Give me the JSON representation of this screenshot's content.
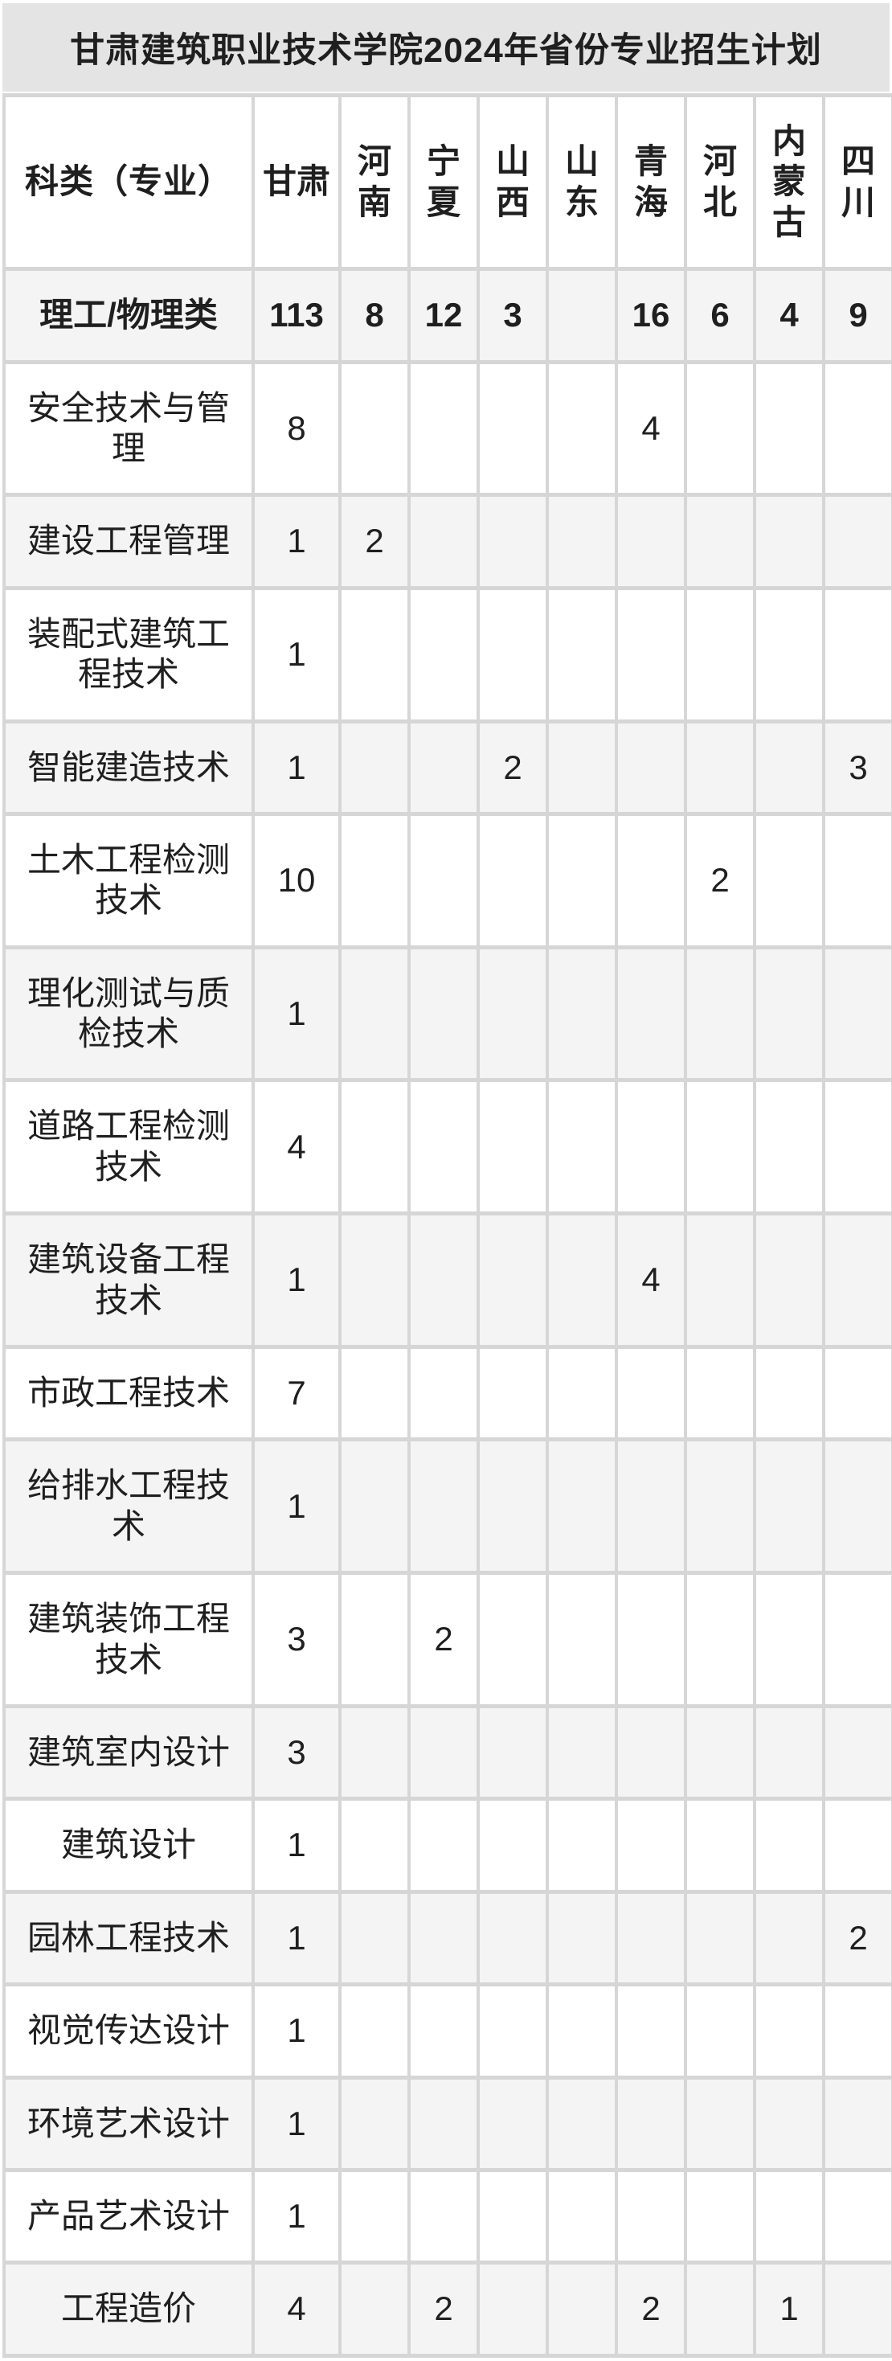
{
  "title": "甘肃建筑职业技术学院2024年省份专业招生计划",
  "colors": {
    "title_background": "#e4e4e4",
    "stripe_row_background": "#f4f4f4",
    "grid_line": "#d6d6d6",
    "text": "#1f1f1f"
  },
  "table": {
    "corner_header": "科类（专业）",
    "provinces": [
      "甘肃",
      "河南",
      "宁夏",
      "山西",
      "山东",
      "青海",
      "河北",
      "内蒙古",
      "四川"
    ],
    "rows": [
      {
        "label": "理工/物理类",
        "bold": true,
        "values": [
          "113",
          "8",
          "12",
          "3",
          "",
          "16",
          "6",
          "4",
          "9"
        ]
      },
      {
        "label": "安全技术与管理",
        "bold": false,
        "values": [
          "8",
          "",
          "",
          "",
          "",
          "4",
          "",
          "",
          ""
        ]
      },
      {
        "label": "建设工程管理",
        "bold": false,
        "values": [
          "1",
          "2",
          "",
          "",
          "",
          "",
          "",
          "",
          ""
        ]
      },
      {
        "label": "装配式建筑工程技术",
        "bold": false,
        "values": [
          "1",
          "",
          "",
          "",
          "",
          "",
          "",
          "",
          ""
        ]
      },
      {
        "label": "智能建造技术",
        "bold": false,
        "values": [
          "1",
          "",
          "",
          "2",
          "",
          "",
          "",
          "",
          "3"
        ]
      },
      {
        "label": "土木工程检测技术",
        "bold": false,
        "values": [
          "10",
          "",
          "",
          "",
          "",
          "",
          "2",
          "",
          ""
        ]
      },
      {
        "label": "理化测试与质检技术",
        "bold": false,
        "values": [
          "1",
          "",
          "",
          "",
          "",
          "",
          "",
          "",
          ""
        ]
      },
      {
        "label": "道路工程检测技术",
        "bold": false,
        "values": [
          "4",
          "",
          "",
          "",
          "",
          "",
          "",
          "",
          ""
        ]
      },
      {
        "label": "建筑设备工程技术",
        "bold": false,
        "values": [
          "1",
          "",
          "",
          "",
          "",
          "4",
          "",
          "",
          ""
        ]
      },
      {
        "label": "市政工程技术",
        "bold": false,
        "values": [
          "7",
          "",
          "",
          "",
          "",
          "",
          "",
          "",
          ""
        ]
      },
      {
        "label": "给排水工程技术",
        "bold": false,
        "values": [
          "1",
          "",
          "",
          "",
          "",
          "",
          "",
          "",
          ""
        ]
      },
      {
        "label": "建筑装饰工程技术",
        "bold": false,
        "values": [
          "3",
          "",
          "2",
          "",
          "",
          "",
          "",
          "",
          ""
        ]
      },
      {
        "label": "建筑室内设计",
        "bold": false,
        "values": [
          "3",
          "",
          "",
          "",
          "",
          "",
          "",
          "",
          ""
        ]
      },
      {
        "label": "建筑设计",
        "bold": false,
        "values": [
          "1",
          "",
          "",
          "",
          "",
          "",
          "",
          "",
          ""
        ]
      },
      {
        "label": "园林工程技术",
        "bold": false,
        "values": [
          "1",
          "",
          "",
          "",
          "",
          "",
          "",
          "",
          "2"
        ]
      },
      {
        "label": "视觉传达设计",
        "bold": false,
        "values": [
          "1",
          "",
          "",
          "",
          "",
          "",
          "",
          "",
          ""
        ]
      },
      {
        "label": "环境艺术设计",
        "bold": false,
        "values": [
          "1",
          "",
          "",
          "",
          "",
          "",
          "",
          "",
          ""
        ]
      },
      {
        "label": "产品艺术设计",
        "bold": false,
        "values": [
          "1",
          "",
          "",
          "",
          "",
          "",
          "",
          "",
          ""
        ]
      },
      {
        "label": "工程造价",
        "bold": false,
        "values": [
          "4",
          "",
          "2",
          "",
          "",
          "2",
          "",
          "1",
          ""
        ]
      }
    ]
  }
}
